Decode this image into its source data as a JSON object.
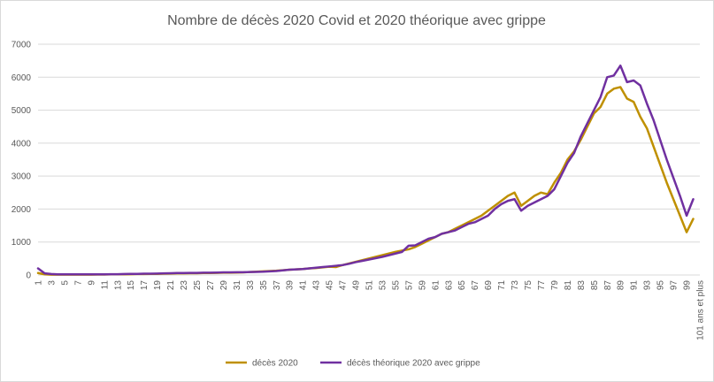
{
  "chart_data": {
    "type": "line",
    "title": "Nombre de décès 2020 Covid et 2020 théorique avec grippe",
    "xlabel": "",
    "ylabel": "",
    "ylim": [
      0,
      7000
    ],
    "y_ticks": [
      0,
      1000,
      2000,
      3000,
      4000,
      5000,
      6000,
      7000
    ],
    "grid": "horizontal",
    "legend_position": "bottom",
    "x_tick_labels": [
      "1",
      "3",
      "5",
      "7",
      "9",
      "11",
      "13",
      "15",
      "17",
      "19",
      "21",
      "23",
      "25",
      "27",
      "29",
      "31",
      "33",
      "35",
      "37",
      "39",
      "41",
      "43",
      "45",
      "47",
      "49",
      "51",
      "53",
      "55",
      "57",
      "59",
      "61",
      "63",
      "65",
      "67",
      "69",
      "71",
      "73",
      "75",
      "77",
      "79",
      "81",
      "83",
      "85",
      "87",
      "89",
      "91",
      "93",
      "95",
      "97",
      "99",
      "101 ans et plus"
    ],
    "x": [
      1,
      2,
      3,
      4,
      5,
      6,
      7,
      8,
      9,
      10,
      11,
      12,
      13,
      14,
      15,
      16,
      17,
      18,
      19,
      20,
      21,
      22,
      23,
      24,
      25,
      26,
      27,
      28,
      29,
      30,
      31,
      32,
      33,
      34,
      35,
      36,
      37,
      38,
      39,
      40,
      41,
      42,
      43,
      44,
      45,
      46,
      47,
      48,
      49,
      50,
      51,
      52,
      53,
      54,
      55,
      56,
      57,
      58,
      59,
      60,
      61,
      62,
      63,
      64,
      65,
      66,
      67,
      68,
      69,
      70,
      71,
      72,
      73,
      74,
      75,
      76,
      77,
      78,
      79,
      80,
      81,
      82,
      83,
      84,
      85,
      86,
      87,
      88,
      89,
      90,
      91,
      92,
      93,
      94,
      95,
      96,
      97,
      98,
      99,
      100,
      101
    ],
    "series": [
      {
        "name": "décès 2020",
        "color": "#bf9000",
        "values": [
          60,
          20,
          10,
          10,
          10,
          10,
          10,
          10,
          10,
          15,
          15,
          20,
          20,
          20,
          25,
          30,
          30,
          35,
          35,
          40,
          45,
          50,
          50,
          55,
          55,
          60,
          60,
          65,
          70,
          70,
          75,
          80,
          90,
          100,
          110,
          120,
          130,
          145,
          160,
          170,
          180,
          200,
          210,
          230,
          250,
          240,
          300,
          350,
          400,
          450,
          500,
          550,
          600,
          650,
          700,
          740,
          780,
          850,
          950,
          1050,
          1150,
          1250,
          1300,
          1400,
          1500,
          1600,
          1700,
          1800,
          1950,
          2100,
          2250,
          2400,
          2500,
          2100,
          2250,
          2400,
          2500,
          2450,
          2800,
          3100,
          3500,
          3750,
          4100,
          4500,
          4900,
          5100,
          5500,
          5650,
          5700,
          5350,
          5250,
          4800,
          4450,
          3900,
          3350,
          2800,
          2300,
          1800,
          1300,
          1700,
          null
        ]
      },
      {
        "name": "décès théorique 2020 avec grippe",
        "color": "#7030a0",
        "values": [
          200,
          50,
          30,
          20,
          20,
          20,
          20,
          20,
          20,
          20,
          20,
          25,
          25,
          30,
          35,
          35,
          40,
          40,
          45,
          50,
          55,
          60,
          60,
          65,
          65,
          70,
          70,
          75,
          80,
          80,
          85,
          85,
          90,
          95,
          100,
          110,
          120,
          140,
          160,
          170,
          180,
          200,
          220,
          240,
          260,
          280,
          300,
          340,
          390,
          430,
          470,
          510,
          550,
          600,
          650,
          700,
          890,
          900,
          1000,
          1100,
          1150,
          1250,
          1300,
          1350,
          1450,
          1550,
          1600,
          1700,
          1800,
          2000,
          2150,
          2250,
          2300,
          1950,
          2100,
          2200,
          2300,
          2400,
          2600,
          3000,
          3400,
          3700,
          4200,
          4600,
          5000,
          5400,
          6000,
          6050,
          6350,
          5850,
          5900,
          5750,
          5200,
          4700,
          4100,
          3500,
          2950,
          2400,
          1800,
          2300,
          null
        ]
      }
    ]
  }
}
